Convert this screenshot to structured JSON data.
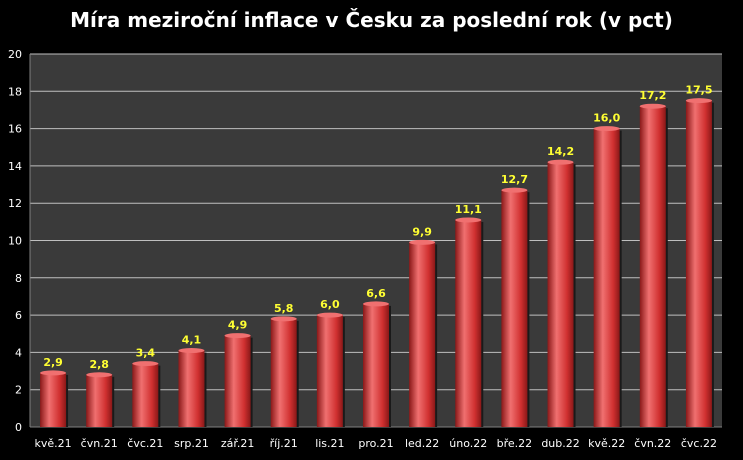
{
  "chart_data": {
    "type": "bar",
    "title": "Míra meziroční inflace v Česku za poslední rok (v pct)",
    "xlabel": "",
    "ylabel": "",
    "categories": [
      "kvě.21",
      "čvn.21",
      "čvc.21",
      "srp.21",
      "zář.21",
      "říj.21",
      "lis.21",
      "pro.21",
      "led.22",
      "úno.22",
      "bře.22",
      "dub.22",
      "kvě.22",
      "čvn.22",
      "čvc.22"
    ],
    "values": [
      2.9,
      2.8,
      3.4,
      4.1,
      4.9,
      5.8,
      6.0,
      6.6,
      9.9,
      11.1,
      12.7,
      14.2,
      16.0,
      17.2,
      17.5
    ],
    "value_labels": [
      "2,9",
      "2,8",
      "3,4",
      "4,1",
      "4,9",
      "5,8",
      "6,0",
      "6,6",
      "9,9",
      "11,1",
      "12,7",
      "14,2",
      "16,0",
      "17,2",
      "17,5"
    ],
    "ylim": [
      0,
      20
    ],
    "y_ticks": [
      "0",
      "2",
      "4",
      "6",
      "8",
      "10",
      "12",
      "14",
      "16",
      "18",
      "20"
    ],
    "grid": true,
    "legend": "none",
    "colors": {
      "background": "#000000",
      "plot_area": "#3a3a3a",
      "bar": "#d03030",
      "bar_highlight": "#f07070",
      "bar_shadow": "#8a1818",
      "data_label": "#ffff33",
      "text": "#ffffff",
      "gridline": "#bfbfbf"
    }
  }
}
